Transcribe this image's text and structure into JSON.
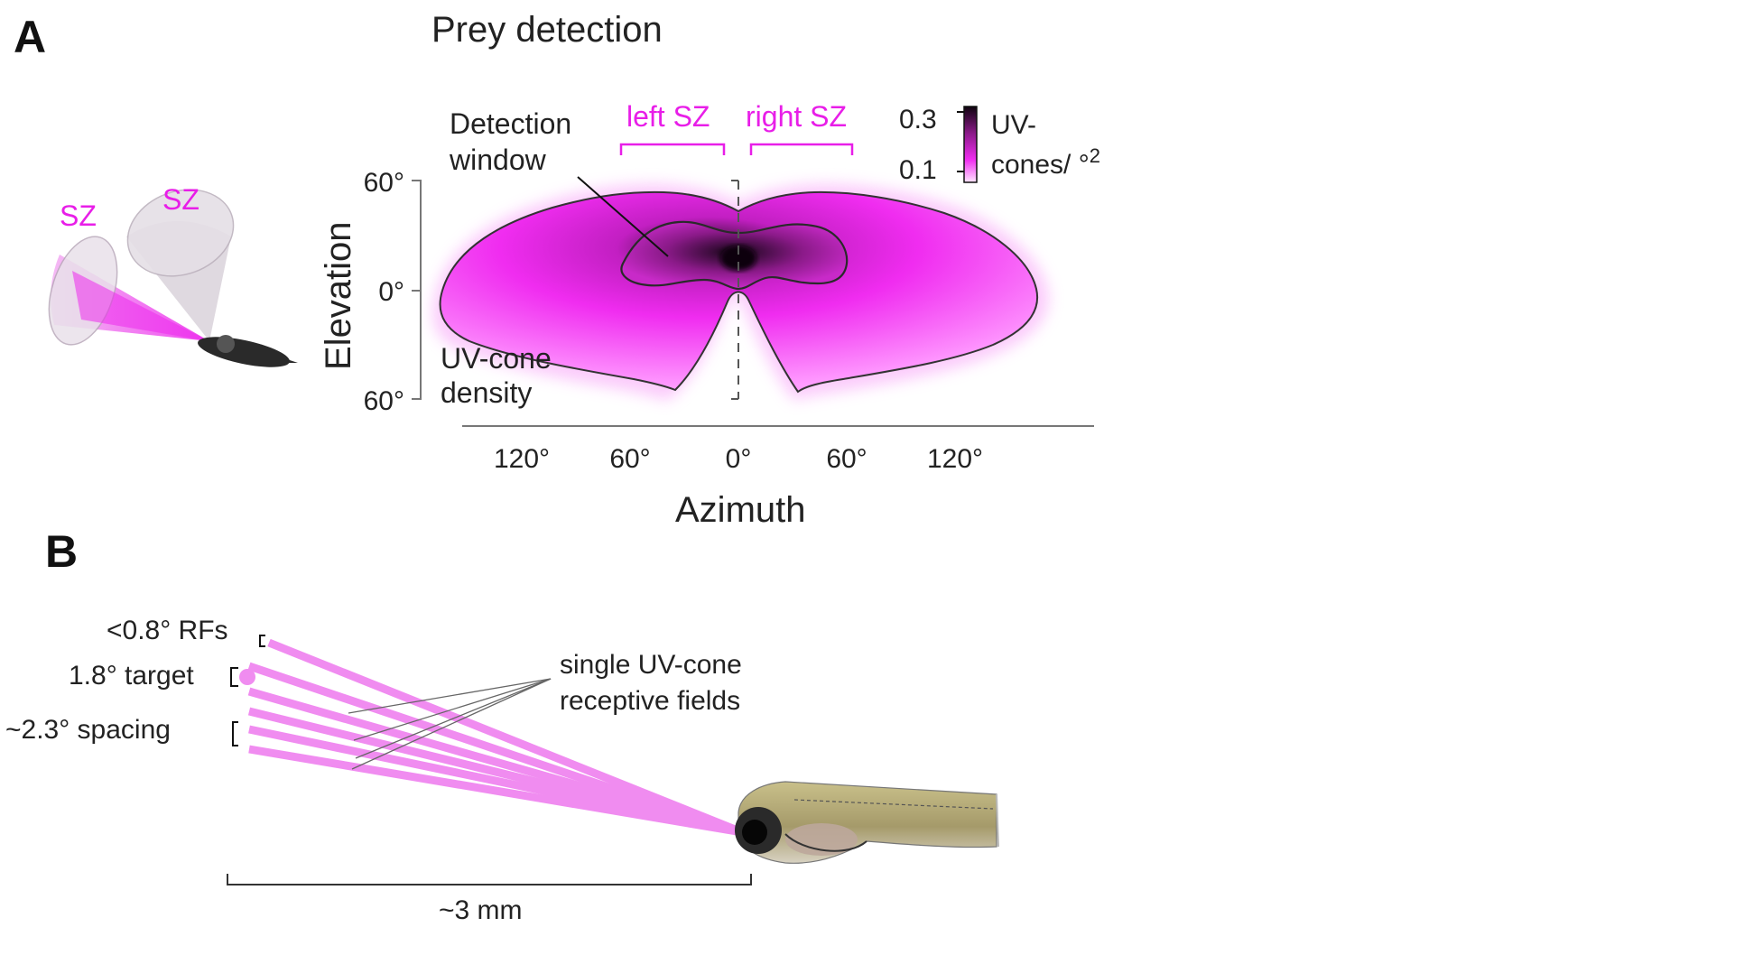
{
  "panel_a": {
    "letter": "A",
    "title": "Prey detection",
    "sz_cone_label_left": "SZ",
    "sz_cone_label_right": "SZ",
    "left_sz": "left SZ",
    "right_sz": "right SZ",
    "annotation_window_line1": "Detection",
    "annotation_window_line2": "window",
    "annotation_density_line1": "UV-cone",
    "annotation_density_line2": "density",
    "colorbar": {
      "max_label": "0.3",
      "min_label": "0.1",
      "unit_line1": "UV-",
      "unit_line2": "cones/ °",
      "unit_sup": "2",
      "color_max": "#1a0a1a",
      "color_min": "#ffe6ff"
    },
    "accent_color": "#e81ee8"
  },
  "chart_data": {
    "type": "heatmap",
    "title": "Prey detection",
    "xlabel": "Azimuth",
    "ylabel": "Elevation",
    "x_ticks": [
      "120°",
      "60°",
      "0°",
      "60°",
      "120°"
    ],
    "y_ticks": [
      "60°",
      "0°",
      "60°"
    ],
    "x_tick_values": [
      -120,
      -60,
      0,
      60,
      120
    ],
    "y_tick_values": [
      60,
      0,
      -60
    ],
    "colorbar_range": [
      0.1,
      0.3
    ],
    "colorbar_unit": "UV-cones/ °2"
  },
  "panel_b": {
    "letter": "B",
    "rf_label": "<0.8° RFs",
    "target_label": "1.8° target",
    "spacing_label": "~2.3° spacing",
    "callout_line1": "single UV-cone",
    "callout_line2": "receptive fields",
    "distance_label": "~3 mm",
    "ray_color": "#f08cf0"
  }
}
